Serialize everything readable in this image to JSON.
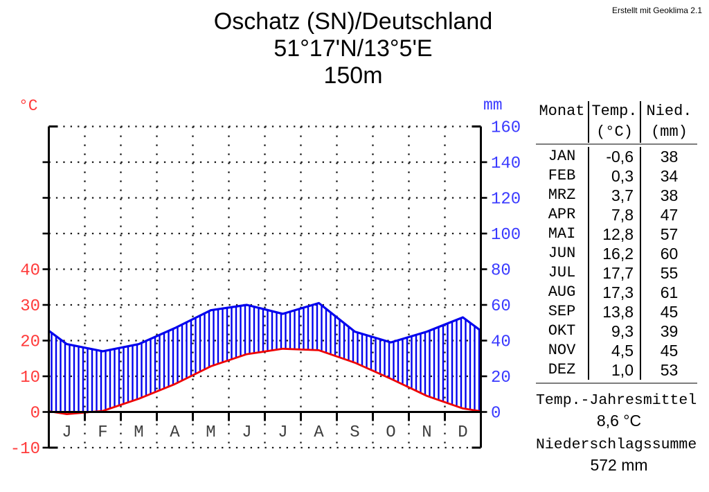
{
  "header": {
    "credit": "Erstellt mit Geoklima 2.1"
  },
  "chart_data": {
    "type": "area",
    "title_lines": [
      "Oschatz (SN)/Deutschland",
      "51°17'N/13°5'E",
      "150m"
    ],
    "station": "Oschatz (SN)/Deutschland",
    "coordinates": "51°17'N/13°5'E",
    "elevation": "150m",
    "categories": [
      "JAN",
      "FEB",
      "MRZ",
      "APR",
      "MAI",
      "JUN",
      "JUL",
      "AUG",
      "SEP",
      "OKT",
      "NOV",
      "DEZ"
    ],
    "month_letters": [
      "J",
      "F",
      "M",
      "A",
      "M",
      "J",
      "J",
      "A",
      "S",
      "O",
      "N",
      "D"
    ],
    "series": [
      {
        "name": "Temperatur (°C)",
        "values": [
          -0.6,
          0.3,
          3.7,
          7.8,
          12.8,
          16.2,
          17.7,
          17.3,
          13.8,
          9.3,
          4.5,
          1.0
        ],
        "color": "#ee0000"
      },
      {
        "name": "Niederschlag (mm)",
        "values": [
          38,
          34,
          38,
          47,
          57,
          60,
          55,
          61,
          45,
          39,
          45,
          53
        ],
        "color": "#0000ee"
      }
    ],
    "left_axis": {
      "unit": "°C",
      "ticks": [
        40,
        30,
        20,
        10,
        0,
        -10
      ],
      "range": [
        -10,
        80
      ],
      "label_color": "#ff3a3a"
    },
    "right_axis": {
      "unit": "mm",
      "ticks": [
        160,
        140,
        120,
        100,
        80,
        60,
        40,
        20,
        0
      ],
      "range": [
        0,
        160
      ],
      "label_color": "#3a3aff"
    },
    "grid": "dotted",
    "legend_position": "none"
  },
  "table": {
    "headers": [
      {
        "line1": "Monat",
        "line2": ""
      },
      {
        "line1": "Temp.",
        "line2": "(°C)"
      },
      {
        "line1": "Nied.",
        "line2": "(mm)"
      }
    ],
    "rows": [
      [
        "JAN",
        "-0,6",
        "38"
      ],
      [
        "FEB",
        "0,3",
        "34"
      ],
      [
        "MRZ",
        "3,7",
        "38"
      ],
      [
        "APR",
        "7,8",
        "47"
      ],
      [
        "MAI",
        "12,8",
        "57"
      ],
      [
        "JUN",
        "16,2",
        "60"
      ],
      [
        "JUL",
        "17,7",
        "55"
      ],
      [
        "AUG",
        "17,3",
        "61"
      ],
      [
        "SEP",
        "13,8",
        "45"
      ],
      [
        "OKT",
        "9,3",
        "39"
      ],
      [
        "NOV",
        "4,5",
        "45"
      ],
      [
        "DEZ",
        "1,0",
        "53"
      ]
    ]
  },
  "summary": {
    "temp_label": "Temp.-Jahresmittel",
    "temp_value": "8,6 °C",
    "precip_label": "Niederschlagssumme",
    "precip_value": "572 mm"
  }
}
